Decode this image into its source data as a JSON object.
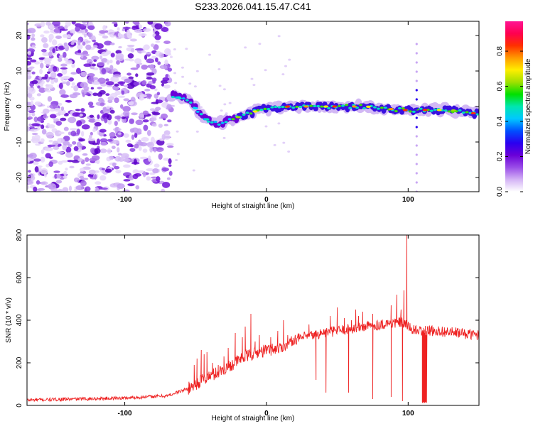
{
  "title": "S233.2026.041.15.47.C41",
  "chart_data": [
    {
      "type": "heatmap",
      "name": "spectrogram",
      "xlabel": "Height of straight line (km)",
      "ylabel": "Frequency (Hz)",
      "xlim": [
        -169,
        150
      ],
      "ylim": [
        -24,
        24
      ],
      "xticks": [
        -100,
        0,
        100
      ],
      "yticks": [
        -20,
        -10,
        0,
        10,
        20
      ],
      "colorbar": {
        "label": "Normalized spectral amplitude",
        "range": [
          0,
          0.97
        ],
        "ticks": [
          0.0,
          0.2,
          0.4,
          0.6,
          0.8
        ],
        "colors": [
          "#ffffff",
          "#d4b3f5",
          "#9a4de8",
          "#6a00d8",
          "#2a00f0",
          "#0050ff",
          "#00c8ff",
          "#00e6b0",
          "#00e000",
          "#a0e000",
          "#ffee00",
          "#ff9a00",
          "#ff3000",
          "#ff0050",
          "#ff1493"
        ]
      },
      "features": [
        {
          "desc": "scattered noise",
          "x_range": [
            -169,
            -67
          ],
          "freq_range": [
            -24,
            24
          ]
        },
        {
          "desc": "signal ridge",
          "x": [
            -67,
            -55,
            -45,
            -35,
            -20,
            -5,
            15,
            40,
            70,
            95,
            110,
            130,
            148
          ],
          "freq": [
            3,
            2,
            -3,
            -5,
            -3,
            -1,
            0,
            0,
            0,
            -1,
            -1,
            -1,
            -2
          ]
        },
        {
          "desc": "vertical streak",
          "x": 106,
          "freq_range": [
            -24,
            20
          ]
        }
      ]
    },
    {
      "type": "line",
      "name": "snr",
      "xlabel": "Height of straight line (km)",
      "ylabel": "SNR (10 * v/v)",
      "xlim": [
        -169,
        150
      ],
      "ylim": [
        0,
        800
      ],
      "xticks": [
        -100,
        0,
        100
      ],
      "yticks": [
        0,
        200,
        400,
        600,
        800
      ],
      "color": "#ee2222",
      "trend": {
        "x": [
          -169,
          -100,
          -70,
          -55,
          -45,
          -30,
          -15,
          0,
          10,
          20,
          40,
          60,
          80,
          95,
          105,
          120,
          150
        ],
        "y": [
          25,
          35,
          45,
          80,
          120,
          170,
          230,
          260,
          270,
          310,
          340,
          360,
          380,
          390,
          350,
          350,
          330
        ]
      },
      "spikes": {
        "x": [
          -51,
          -49,
          -46,
          -44,
          -42,
          -38,
          -34,
          -30,
          -27,
          -22,
          -17,
          -15,
          -11,
          -8,
          -5,
          3,
          6,
          8,
          12,
          15,
          30,
          45,
          50,
          55,
          60,
          63,
          65,
          68,
          70,
          75,
          85,
          88,
          92,
          95,
          97,
          99
        ],
        "y": [
          190,
          220,
          260,
          240,
          250,
          200,
          190,
          230,
          270,
          340,
          320,
          370,
          430,
          300,
          330,
          320,
          280,
          350,
          400,
          330,
          380,
          420,
          460,
          410,
          400,
          450,
          420,
          440,
          380,
          430,
          400,
          470,
          520,
          450,
          540,
          800
        ]
      },
      "dips": [
        {
          "x": 35,
          "y": 120
        },
        {
          "x": 42,
          "y": 60
        },
        {
          "x": 58,
          "y": 60
        },
        {
          "x": 75,
          "y": 30
        },
        {
          "x": 88,
          "y": 40
        },
        {
          "x": 96,
          "y": 20
        },
        {
          "x_range": [
            110,
            113
          ],
          "y": 15
        }
      ]
    }
  ]
}
